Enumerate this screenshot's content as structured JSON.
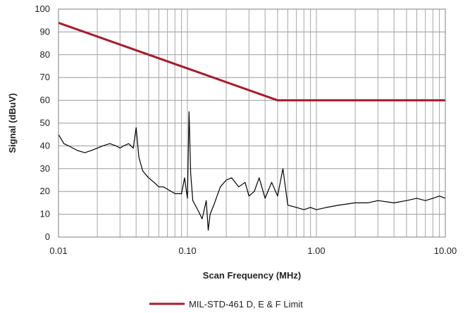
{
  "chart_data": {
    "type": "line",
    "title": "",
    "xlabel": "Scan Frequency (MHz)",
    "ylabel": "Signal (dBuV)",
    "x_scale": "log",
    "xlim": [
      0.01,
      10.0
    ],
    "ylim": [
      0,
      100
    ],
    "x_ticks": [
      0.01,
      0.1,
      1.0,
      10.0
    ],
    "x_tick_labels": [
      "0.01",
      "0.10",
      "1.00",
      "10.00"
    ],
    "y_ticks": [
      0,
      10,
      20,
      30,
      40,
      50,
      60,
      70,
      80,
      90,
      100
    ],
    "y_tick_labels": [
      "0",
      "10",
      "20",
      "30",
      "40",
      "50",
      "60",
      "70",
      "80",
      "90",
      "100"
    ],
    "grid": true,
    "legend_position": "bottom",
    "series": [
      {
        "name": "MIL-STD-461 D, E & F Limit",
        "color": "#a51d2d",
        "x": [
          0.01,
          0.5,
          10.0
        ],
        "y": [
          94,
          60,
          60
        ]
      },
      {
        "name": "",
        "color": "#000000",
        "x": [
          0.01,
          0.011,
          0.012,
          0.014,
          0.016,
          0.018,
          0.02,
          0.022,
          0.025,
          0.028,
          0.03,
          0.032,
          0.035,
          0.038,
          0.04,
          0.042,
          0.045,
          0.05,
          0.055,
          0.06,
          0.065,
          0.07,
          0.08,
          0.09,
          0.095,
          0.1,
          0.103,
          0.106,
          0.11,
          0.12,
          0.13,
          0.14,
          0.145,
          0.15,
          0.16,
          0.18,
          0.2,
          0.22,
          0.25,
          0.28,
          0.3,
          0.33,
          0.36,
          0.4,
          0.45,
          0.5,
          0.55,
          0.6,
          0.7,
          0.8,
          0.9,
          1.0,
          1.2,
          1.5,
          2.0,
          2.5,
          3.0,
          4.0,
          5.0,
          6.0,
          7.0,
          8.0,
          9.0,
          10.0
        ],
        "y": [
          45,
          41,
          40,
          38,
          37,
          38,
          39,
          40,
          41,
          40,
          39,
          40,
          41,
          39,
          48,
          35,
          29,
          26,
          24,
          22,
          22,
          21,
          19,
          19,
          26,
          17,
          55,
          28,
          16,
          12,
          8,
          16,
          3,
          10,
          14,
          22,
          25,
          26,
          22,
          24,
          18,
          20,
          26,
          17,
          24,
          18,
          30,
          14,
          13,
          12,
          13,
          12,
          13,
          14,
          15,
          15,
          16,
          15,
          16,
          17,
          16,
          17,
          18,
          17
        ]
      }
    ]
  }
}
